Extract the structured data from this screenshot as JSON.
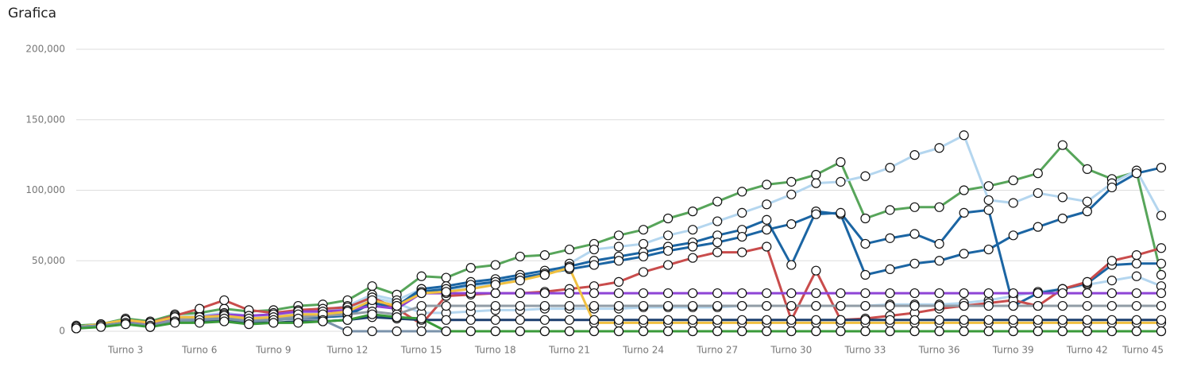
{
  "chart_data": {
    "type": "line",
    "title": "Grafica",
    "categories": [
      null,
      null,
      "Turno 3",
      null,
      null,
      "Turno 6",
      null,
      null,
      "Turno 9",
      null,
      null,
      "Turno 12",
      null,
      null,
      "Turno 15",
      null,
      null,
      "Turno 18",
      null,
      null,
      "Turno 21",
      null,
      null,
      "Turno 24",
      null,
      null,
      "Turno 27",
      null,
      null,
      "Turno 30",
      null,
      null,
      "Turno 33",
      null,
      null,
      "Turno 36",
      null,
      null,
      "Turno 39",
      null,
      null,
      "Turno 42",
      null,
      null,
      "Turno 45"
    ],
    "ylim": [
      0,
      200000
    ],
    "yticks": [
      0,
      {
        "value": 50000,
        "label": "50,000"
      },
      {
        "value": 100000,
        "label": "100,000"
      },
      {
        "value": 150000,
        "label": "150,000"
      },
      {
        "value": 200000,
        "label": "200,000"
      }
    ],
    "grid": true,
    "series": [
      {
        "color": "#57a55a",
        "values": [
          4000,
          5000,
          9000,
          7000,
          12000,
          13000,
          16000,
          14000,
          15000,
          18000,
          19000,
          22000,
          32000,
          26000,
          39000,
          38000,
          45000,
          47000,
          53000,
          54000,
          58000,
          62000,
          68000,
          72000,
          80000,
          85000,
          92000,
          99000,
          104000,
          106000,
          111000,
          120000,
          80000,
          86000,
          88000,
          88000,
          100000,
          103000,
          107000,
          112000,
          132000,
          115000,
          108000,
          113000,
          40000
        ]
      },
      {
        "color": "#b4d6ef",
        "values": [
          3000,
          5000,
          8000,
          6000,
          10000,
          11000,
          13000,
          11000,
          12000,
          14000,
          15000,
          18000,
          26000,
          22000,
          30000,
          29000,
          32000,
          34000,
          37000,
          40000,
          48000,
          58000,
          60000,
          62000,
          68000,
          72000,
          78000,
          84000,
          90000,
          97000,
          105000,
          106000,
          110000,
          116000,
          125000,
          130000,
          139000,
          93000,
          91000,
          98000,
          95000,
          92000,
          105000,
          114000,
          82000
        ]
      },
      {
        "color": "#b4d6ef",
        "values": [
          3000,
          4000,
          7000,
          5000,
          9000,
          10000,
          12000,
          10000,
          11000,
          13000,
          14000,
          16000,
          24000,
          20000,
          13000,
          13000,
          14000,
          15000,
          15000,
          16000,
          16000,
          16000,
          16000,
          17000,
          17000,
          17000,
          17000,
          18000,
          18000,
          18000,
          18000,
          18000,
          18000,
          19000,
          19000,
          19000,
          20000,
          22000,
          25000,
          28000,
          30000,
          33000,
          36000,
          39000,
          32000
        ]
      },
      {
        "color": "#1b65a3",
        "values": [
          3000,
          4000,
          7000,
          4000,
          8000,
          9000,
          10000,
          8000,
          9000,
          10000,
          11000,
          12000,
          22000,
          18000,
          30000,
          32000,
          35000,
          37000,
          40000,
          43000,
          46000,
          50000,
          53000,
          56000,
          60000,
          63000,
          68000,
          72000,
          79000,
          47000,
          85000,
          83000,
          40000,
          44000,
          48000,
          50000,
          55000,
          58000,
          68000,
          74000,
          80000,
          85000,
          102000,
          112000,
          116000
        ]
      },
      {
        "color": "#1b65a3",
        "values": [
          2000,
          4000,
          6000,
          3000,
          7000,
          8000,
          9000,
          7000,
          8000,
          9000,
          10000,
          11000,
          20000,
          17000,
          28000,
          30000,
          33000,
          35000,
          38000,
          41000,
          44000,
          47000,
          50000,
          53000,
          57000,
          60000,
          63000,
          67000,
          72000,
          76000,
          83000,
          84000,
          62000,
          66000,
          69000,
          62000,
          84000,
          86000,
          18000,
          27000,
          30000,
          34000,
          47000,
          48000,
          48000
        ]
      },
      {
        "color": "#c94c4c",
        "values": [
          2000,
          4000,
          8000,
          6000,
          11000,
          16000,
          22000,
          15000,
          13000,
          15000,
          16000,
          17000,
          24000,
          16000,
          5000,
          25000,
          26000,
          27000,
          27000,
          28000,
          30000,
          32000,
          35000,
          42000,
          47000,
          52000,
          56000,
          56000,
          60000,
          8000,
          43000,
          8000,
          9000,
          11000,
          13000,
          16000,
          18000,
          20000,
          22000,
          18000,
          30000,
          35000,
          50000,
          54000,
          59000
        ]
      },
      {
        "color": "#8e44d6",
        "values": [
          3000,
          4000,
          7000,
          5000,
          9000,
          10000,
          12000,
          11000,
          12000,
          14000,
          14000,
          15000,
          18000,
          16000,
          27000,
          27000,
          27000,
          27000,
          27000,
          27000,
          27000,
          27000,
          27000,
          27000,
          27000,
          27000,
          27000,
          27000,
          27000,
          27000,
          27000,
          27000,
          27000,
          27000,
          27000,
          27000,
          27000,
          27000,
          27000,
          27000,
          27000,
          27000,
          27000,
          27000,
          27000
        ]
      },
      {
        "color": "#919ca6",
        "values": [
          3000,
          4000,
          6000,
          4000,
          8000,
          9000,
          10000,
          8000,
          9000,
          10000,
          11000,
          12000,
          14000,
          12000,
          18000,
          18000,
          18000,
          18000,
          18000,
          18000,
          18000,
          18000,
          18000,
          18000,
          18000,
          18000,
          18000,
          18000,
          18000,
          18000,
          18000,
          18000,
          18000,
          18000,
          18000,
          18000,
          18000,
          18000,
          18000,
          18000,
          18000,
          18000,
          18000,
          18000,
          18000
        ]
      },
      {
        "color": "#f0c040",
        "values": [
          3000,
          5000,
          8000,
          6000,
          10000,
          10000,
          11000,
          9000,
          10000,
          12000,
          12000,
          14000,
          22000,
          18000,
          27000,
          28000,
          30000,
          33000,
          36000,
          40000,
          45000,
          6000,
          6000,
          6000,
          6000,
          6000,
          6000,
          6000,
          6000,
          6000,
          6000,
          6000,
          6000,
          6000,
          6000,
          6000,
          6000,
          6000,
          6000,
          6000,
          6000,
          6000,
          6000,
          6000,
          6000
        ]
      },
      {
        "color": "#1c3f6e",
        "values": [
          3000,
          4000,
          6000,
          3000,
          7000,
          7000,
          8000,
          6000,
          6000,
          7000,
          7000,
          8000,
          10000,
          9000,
          8000,
          8000,
          8000,
          8000,
          8000,
          8000,
          8000,
          8000,
          8000,
          8000,
          8000,
          8000,
          8000,
          8000,
          8000,
          8000,
          8000,
          8000,
          8000,
          8000,
          8000,
          8000,
          8000,
          8000,
          8000,
          8000,
          8000,
          8000,
          8000,
          8000,
          8000
        ]
      },
      {
        "color": "#7b93ab",
        "values": [
          3000,
          4000,
          6000,
          4000,
          7000,
          8000,
          9000,
          7000,
          8000,
          9000,
          8000,
          0,
          0,
          0,
          0,
          0,
          0,
          0,
          0,
          0,
          0,
          0,
          0,
          0,
          0,
          0,
          0,
          0,
          0,
          0,
          0,
          0,
          0,
          0,
          0,
          0,
          0,
          0,
          0,
          0,
          0,
          0,
          0,
          0,
          0
        ]
      },
      {
        "color": "#3a9a3a",
        "values": [
          2000,
          3000,
          5000,
          3000,
          6000,
          6000,
          7000,
          5000,
          6000,
          6000,
          7000,
          8000,
          12000,
          10000,
          9000,
          0,
          0,
          0,
          0,
          0,
          0,
          0,
          0,
          0,
          0,
          0,
          0,
          0,
          0,
          0,
          0,
          0,
          0,
          0,
          0,
          0,
          0,
          0,
          0,
          0,
          0,
          0,
          0,
          0,
          0
        ]
      }
    ]
  }
}
